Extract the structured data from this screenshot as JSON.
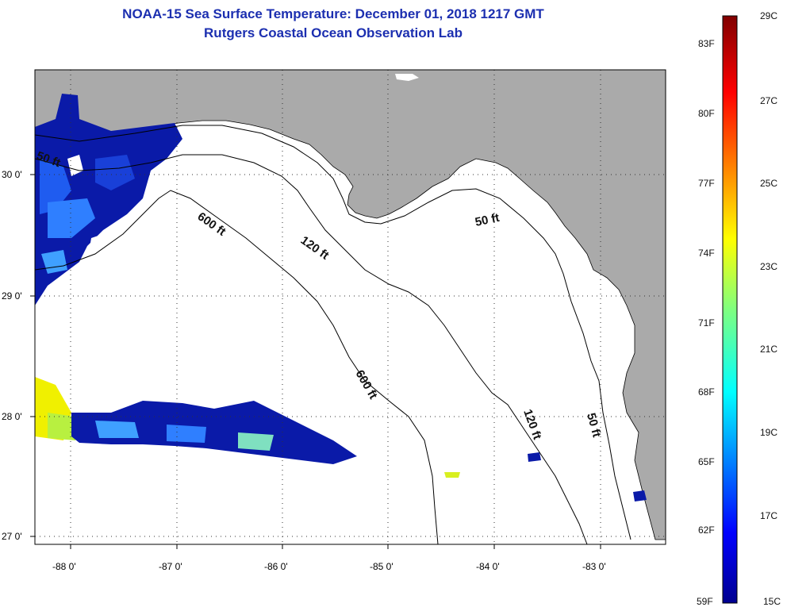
{
  "title": {
    "line1": "NOAA-15 Sea Surface Temperature:  December 01, 2018 1217 GMT",
    "line2": "Rutgers Coastal Ocean Observation Lab"
  },
  "map": {
    "lon_ticks": [
      "-88 0'",
      "-87 0'",
      "-86 0'",
      "-85 0'",
      "-84 0'",
      "-83 0'"
    ],
    "lat_ticks": [
      "30 0'",
      "29 0'",
      "28 0'",
      "27 0'"
    ],
    "contour_labels": [
      "50 ft",
      "600 ft",
      "120 ft",
      "50 ft",
      "600 ft",
      "120 ft",
      "50 ft"
    ],
    "colors": {
      "land": "#aaaaaa",
      "ocean_nodata": "#ffffff",
      "grid": "#333333"
    }
  },
  "colorbar": {
    "fahrenheit": [
      "83F",
      "80F",
      "77F",
      "74F",
      "71F",
      "68F",
      "65F",
      "62F",
      "59F"
    ],
    "celsius": [
      "29C",
      "27C",
      "25C",
      "23C",
      "21C",
      "19C",
      "17C",
      "15C"
    ],
    "colormap": "jet",
    "range_celsius": [
      15,
      29
    ]
  }
}
